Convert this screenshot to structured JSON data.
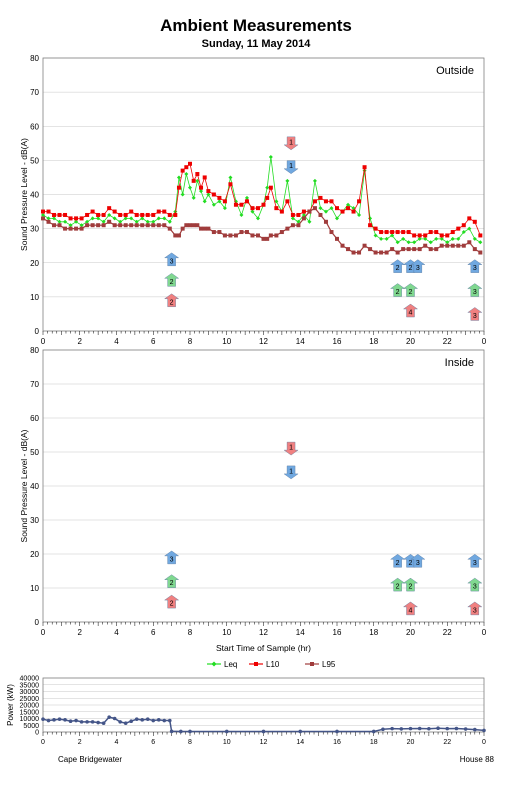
{
  "title": "Ambient Measurements",
  "subtitle": "Sunday, 11 May 2014",
  "footer_left": "Cape Bridgewater",
  "footer_right": "House 88",
  "colors": {
    "leq": "#22dd22",
    "l10": "#ee0000",
    "l95": "#a03c3c",
    "power": "#445588",
    "arrow_red": "#f08080",
    "arrow_green": "#80d890",
    "arrow_blue": "#70a8e0"
  },
  "chart_data": [
    {
      "type": "line",
      "panel": "Outside",
      "ylabel": "Sound Pressure Level - dB(A)",
      "xlabel": "",
      "xlim": [
        0,
        24
      ],
      "ylim": [
        0,
        80
      ],
      "yticks": [
        "0",
        "10",
        "20",
        "30",
        "40",
        "50",
        "60",
        "70",
        "80"
      ],
      "xticks": [
        "0",
        "2",
        "4",
        "6",
        "8",
        "10",
        "12",
        "14",
        "16",
        "18",
        "20",
        "22",
        "0"
      ],
      "series": [
        {
          "name": "Leq",
          "x": [
            0,
            0.3,
            0.6,
            0.9,
            1.2,
            1.5,
            1.8,
            2.1,
            2.4,
            2.7,
            3.0,
            3.3,
            3.6,
            3.9,
            4.2,
            4.5,
            4.8,
            5.1,
            5.4,
            5.7,
            6.0,
            6.3,
            6.6,
            6.9,
            7.2,
            7.4,
            7.6,
            7.8,
            8.0,
            8.2,
            8.4,
            8.6,
            8.8,
            9.0,
            9.3,
            9.6,
            9.9,
            10.2,
            10.5,
            10.8,
            11.1,
            11.4,
            11.7,
            12.0,
            12.2,
            12.4,
            12.7,
            13.0,
            13.3,
            13.6,
            13.9,
            14.2,
            14.5,
            14.8,
            15.1,
            15.4,
            15.7,
            16.0,
            16.3,
            16.6,
            16.9,
            17.2,
            17.5,
            17.8,
            18.1,
            18.4,
            18.7,
            19.0,
            19.3,
            19.6,
            19.9,
            20.2,
            20.5,
            20.8,
            21.1,
            21.4,
            21.7,
            22.0,
            22.3,
            22.6,
            22.9,
            23.2,
            23.5,
            23.8
          ],
          "y": [
            34,
            33,
            33,
            32,
            32,
            31,
            32,
            31,
            32,
            33,
            33,
            32,
            34,
            33,
            32,
            33,
            33,
            32,
            33,
            32,
            32,
            33,
            33,
            32,
            35,
            45,
            40,
            46,
            42,
            39,
            44,
            41,
            38,
            40,
            37,
            38,
            36,
            45,
            38,
            34,
            39,
            35,
            33,
            37,
            42,
            51,
            38,
            35,
            44,
            33,
            32,
            34,
            32,
            44,
            36,
            35,
            36,
            33,
            35,
            37,
            36,
            34,
            47,
            33,
            28,
            27,
            27,
            28,
            26,
            27,
            26,
            26,
            27,
            27,
            26,
            27,
            27,
            26,
            27,
            27,
            29,
            30,
            27,
            26
          ]
        },
        {
          "name": "L10",
          "x": [
            0,
            0.3,
            0.6,
            0.9,
            1.2,
            1.5,
            1.8,
            2.1,
            2.4,
            2.7,
            3.0,
            3.3,
            3.6,
            3.9,
            4.2,
            4.5,
            4.8,
            5.1,
            5.4,
            5.7,
            6.0,
            6.3,
            6.6,
            6.9,
            7.2,
            7.4,
            7.6,
            7.8,
            8.0,
            8.2,
            8.4,
            8.6,
            8.8,
            9.0,
            9.3,
            9.6,
            9.9,
            10.2,
            10.5,
            10.8,
            11.1,
            11.4,
            11.7,
            12.0,
            12.2,
            12.4,
            12.7,
            13.0,
            13.3,
            13.6,
            13.9,
            14.2,
            14.5,
            14.8,
            15.1,
            15.4,
            15.7,
            16.0,
            16.3,
            16.6,
            16.9,
            17.2,
            17.5,
            17.8,
            18.1,
            18.4,
            18.7,
            19.0,
            19.3,
            19.6,
            19.9,
            20.2,
            20.5,
            20.8,
            21.1,
            21.4,
            21.7,
            22.0,
            22.3,
            22.6,
            22.9,
            23.2,
            23.5,
            23.8
          ],
          "y": [
            35,
            35,
            34,
            34,
            34,
            33,
            33,
            33,
            34,
            35,
            34,
            34,
            36,
            35,
            34,
            34,
            35,
            34,
            34,
            34,
            34,
            35,
            35,
            34,
            34,
            42,
            47,
            48,
            49,
            44,
            46,
            42,
            45,
            41,
            40,
            39,
            38,
            43,
            37,
            37,
            38,
            36,
            36,
            37,
            39,
            42,
            36,
            35,
            38,
            34,
            34,
            35,
            35,
            38,
            39,
            38,
            38,
            36,
            35,
            36,
            35,
            38,
            48,
            31,
            30,
            29,
            29,
            29,
            29,
            29,
            29,
            28,
            28,
            28,
            29,
            29,
            28,
            28,
            29,
            30,
            31,
            33,
            32,
            28
          ]
        },
        {
          "name": "L95",
          "x": [
            0,
            0.3,
            0.6,
            0.9,
            1.2,
            1.5,
            1.8,
            2.1,
            2.4,
            2.7,
            3.0,
            3.3,
            3.6,
            3.9,
            4.2,
            4.5,
            4.8,
            5.1,
            5.4,
            5.7,
            6.0,
            6.3,
            6.6,
            6.9,
            7.2,
            7.4,
            7.6,
            7.8,
            8.0,
            8.2,
            8.4,
            8.6,
            8.8,
            9.0,
            9.3,
            9.6,
            9.9,
            10.2,
            10.5,
            10.8,
            11.1,
            11.4,
            11.7,
            12.0,
            12.2,
            12.4,
            12.7,
            13.0,
            13.3,
            13.6,
            13.9,
            14.2,
            14.5,
            14.8,
            15.1,
            15.4,
            15.7,
            16.0,
            16.3,
            16.6,
            16.9,
            17.2,
            17.5,
            17.8,
            18.1,
            18.4,
            18.7,
            19.0,
            19.3,
            19.6,
            19.9,
            20.2,
            20.5,
            20.8,
            21.1,
            21.4,
            21.7,
            22.0,
            22.3,
            22.6,
            22.9,
            23.2,
            23.5,
            23.8
          ],
          "y": [
            33,
            32,
            31,
            31,
            30,
            30,
            30,
            30,
            31,
            31,
            31,
            31,
            32,
            31,
            31,
            31,
            31,
            31,
            31,
            31,
            31,
            31,
            31,
            30,
            28,
            28,
            30,
            31,
            31,
            31,
            31,
            30,
            30,
            30,
            29,
            29,
            28,
            28,
            28,
            29,
            29,
            28,
            28,
            27,
            27,
            28,
            28,
            29,
            30,
            31,
            31,
            33,
            35,
            36,
            34,
            32,
            29,
            27,
            25,
            24,
            23,
            23,
            25,
            24,
            23,
            23,
            23,
            24,
            23,
            24,
            24,
            24,
            24,
            25,
            24,
            24,
            25,
            25,
            25,
            25,
            25,
            26,
            24,
            23
          ]
        }
      ],
      "markers": [
        {
          "x": 13.5,
          "label": "1",
          "color": "red",
          "dir": "down",
          "y": 55
        },
        {
          "x": 13.5,
          "label": "1",
          "color": "blue",
          "dir": "down",
          "y": 48
        },
        {
          "x": 7.0,
          "label": "3",
          "color": "blue",
          "dir": "up",
          "y": 21
        },
        {
          "x": 7.0,
          "label": "2",
          "color": "green",
          "dir": "up",
          "y": 15
        },
        {
          "x": 7.0,
          "label": "2",
          "color": "red",
          "dir": "up",
          "y": 9
        },
        {
          "x": 19.3,
          "label": "2",
          "color": "blue",
          "dir": "up",
          "y": 19
        },
        {
          "x": 19.3,
          "label": "2",
          "color": "green",
          "dir": "up",
          "y": 12
        },
        {
          "x": 20.0,
          "label": "2",
          "color": "blue",
          "dir": "up",
          "y": 19
        },
        {
          "x": 20.4,
          "label": "3",
          "color": "blue",
          "dir": "up",
          "y": 19
        },
        {
          "x": 20.0,
          "label": "2",
          "color": "green",
          "dir": "up",
          "y": 12
        },
        {
          "x": 20.0,
          "label": "4",
          "color": "red",
          "dir": "up",
          "y": 6
        },
        {
          "x": 23.5,
          "label": "3",
          "color": "blue",
          "dir": "up",
          "y": 19
        },
        {
          "x": 23.5,
          "label": "3",
          "color": "green",
          "dir": "up",
          "y": 12
        },
        {
          "x": 23.5,
          "label": "3",
          "color": "red",
          "dir": "up",
          "y": 5
        }
      ]
    },
    {
      "type": "line",
      "panel": "Inside",
      "ylabel": "Sound Pressure Level - dB(A)",
      "xlabel": "Start Time of Sample (hr)",
      "xlim": [
        0,
        24
      ],
      "ylim": [
        0,
        80
      ],
      "yticks": [
        "0",
        "10",
        "20",
        "30",
        "40",
        "50",
        "60",
        "70",
        "80"
      ],
      "xticks": [
        "0",
        "2",
        "4",
        "6",
        "8",
        "10",
        "12",
        "14",
        "16",
        "18",
        "20",
        "22",
        "0"
      ],
      "series": [],
      "markers": [
        {
          "x": 13.5,
          "label": "1",
          "color": "red",
          "dir": "down",
          "y": 51
        },
        {
          "x": 13.5,
          "label": "1",
          "color": "blue",
          "dir": "down",
          "y": 44
        },
        {
          "x": 7.0,
          "label": "3",
          "color": "blue",
          "dir": "up",
          "y": 19
        },
        {
          "x": 7.0,
          "label": "2",
          "color": "green",
          "dir": "up",
          "y": 12
        },
        {
          "x": 7.0,
          "label": "2",
          "color": "red",
          "dir": "up",
          "y": 6
        },
        {
          "x": 19.3,
          "label": "2",
          "color": "blue",
          "dir": "up",
          "y": 18
        },
        {
          "x": 19.3,
          "label": "2",
          "color": "green",
          "dir": "up",
          "y": 11
        },
        {
          "x": 20.0,
          "label": "2",
          "color": "blue",
          "dir": "up",
          "y": 18
        },
        {
          "x": 20.4,
          "label": "3",
          "color": "blue",
          "dir": "up",
          "y": 18
        },
        {
          "x": 20.0,
          "label": "2",
          "color": "green",
          "dir": "up",
          "y": 11
        },
        {
          "x": 20.0,
          "label": "4",
          "color": "red",
          "dir": "up",
          "y": 4
        },
        {
          "x": 23.5,
          "label": "3",
          "color": "blue",
          "dir": "up",
          "y": 18
        },
        {
          "x": 23.5,
          "label": "3",
          "color": "green",
          "dir": "up",
          "y": 11
        },
        {
          "x": 23.5,
          "label": "3",
          "color": "red",
          "dir": "up",
          "y": 4
        }
      ]
    },
    {
      "type": "line",
      "panel": "Power",
      "ylabel": "Power (kW)",
      "xlim": [
        0,
        24
      ],
      "ylim": [
        0,
        40000
      ],
      "yticks": [
        "0",
        "5000",
        "10000",
        "15000",
        "20000",
        "25000",
        "30000",
        "35000",
        "40000"
      ],
      "xticks": [
        "0",
        "2",
        "4",
        "6",
        "8",
        "10",
        "12",
        "14",
        "16",
        "18",
        "20",
        "22",
        "0"
      ],
      "series": [
        {
          "name": "Power",
          "x": [
            0,
            0.3,
            0.6,
            0.9,
            1.2,
            1.5,
            1.8,
            2.1,
            2.4,
            2.7,
            3.0,
            3.3,
            3.6,
            3.9,
            4.2,
            4.5,
            4.8,
            5.1,
            5.4,
            5.7,
            6.0,
            6.3,
            6.6,
            6.9,
            7.0,
            7.5,
            8,
            10,
            12,
            14,
            16,
            18,
            18.5,
            19,
            19.5,
            20,
            20.5,
            21,
            21.5,
            22,
            22.5,
            23,
            23.5,
            24
          ],
          "y": [
            9500,
            8500,
            9000,
            9500,
            9000,
            8000,
            8500,
            7500,
            7500,
            7500,
            7000,
            6500,
            11000,
            10000,
            7500,
            6500,
            8000,
            9500,
            9000,
            9500,
            8500,
            9000,
            8500,
            8500,
            500,
            400,
            400,
            400,
            400,
            400,
            400,
            400,
            2000,
            2500,
            2300,
            2500,
            2600,
            2400,
            2800,
            2500,
            2600,
            2200,
            1800,
            1200
          ]
        }
      ]
    }
  ],
  "legend": {
    "items": [
      "Leq",
      "L10",
      "L95"
    ],
    "placement": "bottom"
  }
}
